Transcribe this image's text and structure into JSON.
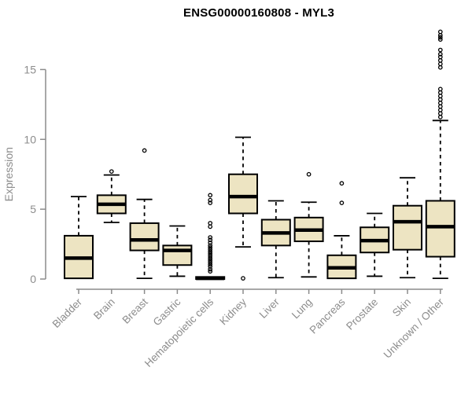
{
  "chart_data": {
    "type": "boxplot",
    "title": "ENSG00000160808 - MYL3",
    "ylabel": "Expression",
    "ylim": [
      0,
      18
    ],
    "yticks": [
      0,
      5,
      10,
      15
    ],
    "grid": false,
    "legend": "none",
    "colors": {
      "box_fill": "#ede4c2",
      "stroke": "#000000",
      "axis": "#8c8c8c",
      "title": "#000000",
      "background": "#ffffff"
    },
    "categories": [
      "Bladder",
      "Brain",
      "Breast",
      "Gastric",
      "Hematopoietic cells",
      "Kidney",
      "Liver",
      "Lung",
      "Pancreas",
      "Prostate",
      "Skin",
      "Unknown / Other"
    ],
    "series": [
      {
        "name": "Bladder",
        "whisker_low": 0.05,
        "q1": 0.05,
        "median": 1.5,
        "q3": 3.1,
        "whisker_high": 5.9,
        "outliers": []
      },
      {
        "name": "Brain",
        "whisker_low": 4.05,
        "q1": 4.7,
        "median": 5.35,
        "q3": 6.0,
        "whisker_high": 7.45,
        "outliers": [
          7.7
        ]
      },
      {
        "name": "Breast",
        "whisker_low": 0.05,
        "q1": 2.05,
        "median": 2.8,
        "q3": 4.0,
        "whisker_high": 5.7,
        "outliers": [
          9.2
        ]
      },
      {
        "name": "Gastric",
        "whisker_low": 0.2,
        "q1": 1.0,
        "median": 2.05,
        "q3": 2.4,
        "whisker_high": 3.8,
        "outliers": []
      },
      {
        "name": "Hematopoietic cells",
        "whisker_low": 0.0,
        "q1": 0.0,
        "median": 0.05,
        "q3": 0.15,
        "whisker_high": 0.15,
        "outliers": [
          6.0,
          5.65,
          5.45,
          4.0,
          3.75,
          2.98,
          2.8,
          2.6,
          2.4,
          2.25,
          2.1,
          1.95,
          1.8,
          1.65,
          1.5,
          1.35,
          1.2,
          1.05,
          0.9,
          0.7,
          0.55
        ]
      },
      {
        "name": "Kidney",
        "whisker_low": 2.3,
        "q1": 4.7,
        "median": 5.9,
        "q3": 7.5,
        "whisker_high": 10.15,
        "outliers": [
          0.05
        ]
      },
      {
        "name": "Liver",
        "whisker_low": 0.1,
        "q1": 2.4,
        "median": 3.3,
        "q3": 4.25,
        "whisker_high": 5.6,
        "outliers": []
      },
      {
        "name": "Lung",
        "whisker_low": 0.15,
        "q1": 2.7,
        "median": 3.5,
        "q3": 4.4,
        "whisker_high": 5.5,
        "outliers": [
          7.5
        ]
      },
      {
        "name": "Pancreas",
        "whisker_low": 0.05,
        "q1": 0.05,
        "median": 0.8,
        "q3": 1.7,
        "whisker_high": 3.1,
        "outliers": [
          6.85,
          5.45
        ]
      },
      {
        "name": "Prostate",
        "whisker_low": 0.2,
        "q1": 1.9,
        "median": 2.75,
        "q3": 3.7,
        "whisker_high": 4.7,
        "outliers": []
      },
      {
        "name": "Skin",
        "whisker_low": 0.1,
        "q1": 2.1,
        "median": 4.1,
        "q3": 5.25,
        "whisker_high": 7.25,
        "outliers": []
      },
      {
        "name": "Unknown / Other",
        "whisker_low": 0.05,
        "q1": 1.6,
        "median": 3.75,
        "q3": 5.6,
        "whisker_high": 11.35,
        "outliers": [
          11.6,
          11.85,
          12.1,
          12.35,
          12.6,
          12.85,
          13.1,
          13.35,
          13.6,
          15.15,
          15.4,
          15.65,
          15.9,
          16.1,
          16.4,
          17.15,
          17.3,
          17.45,
          17.7
        ]
      }
    ]
  }
}
